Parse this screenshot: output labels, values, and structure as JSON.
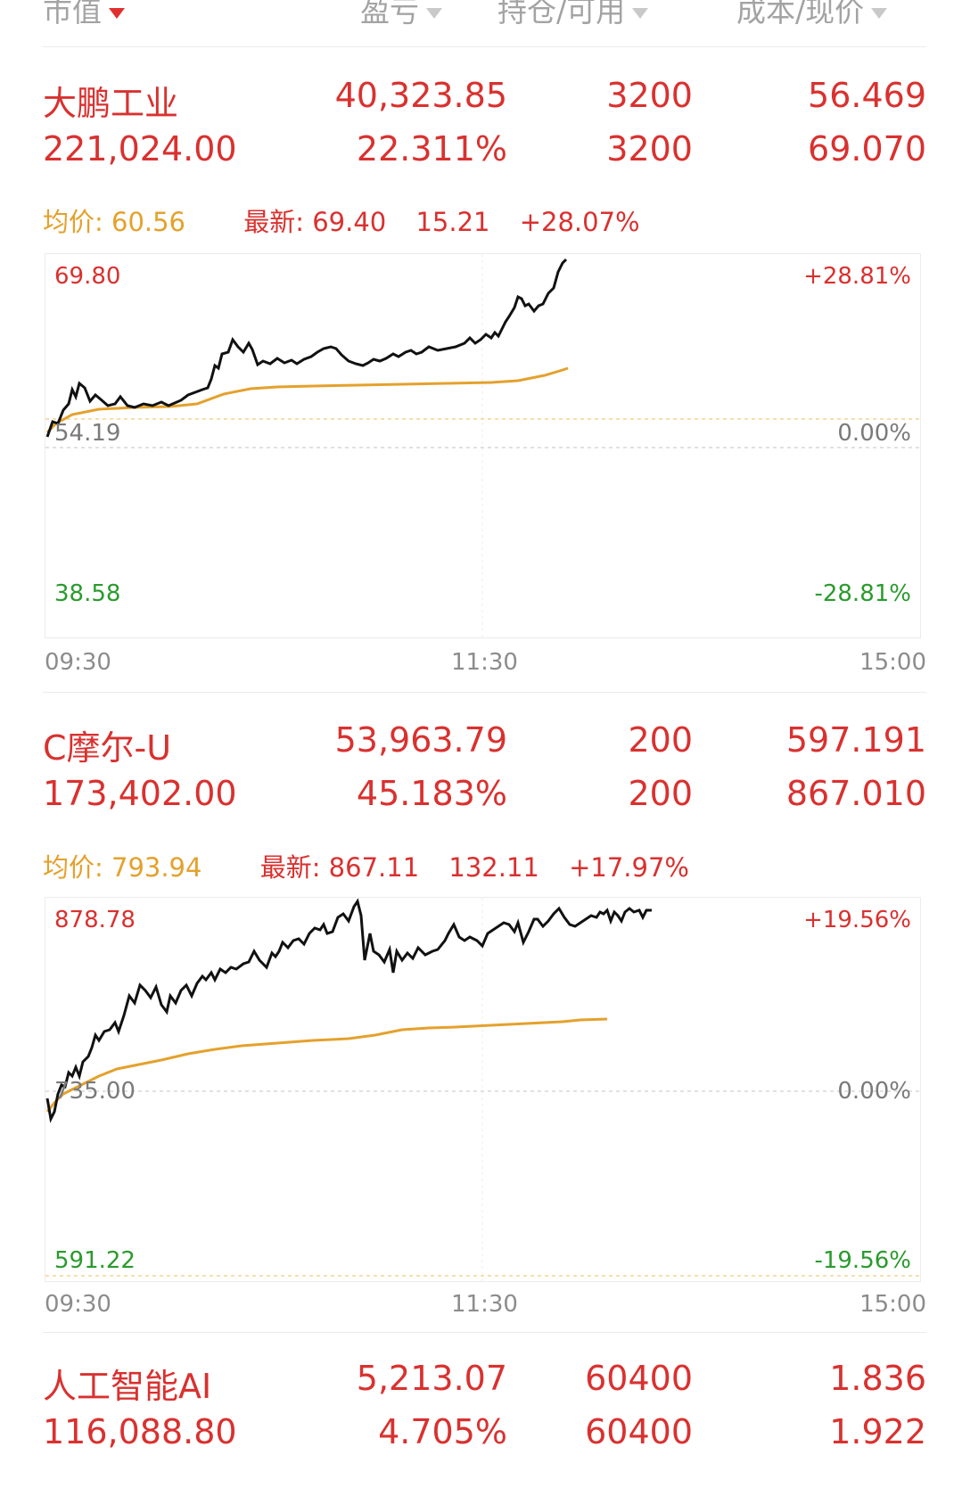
{
  "header": {
    "col1": "市值",
    "col2": "盈亏",
    "col3": "持仓/可用",
    "col4": "成本/现价"
  },
  "colors": {
    "red": "#d9312f",
    "avg": "#e4a12c",
    "green": "#2a9b2d",
    "line": "#111111"
  },
  "stocks": [
    {
      "name": "大鹏工业",
      "market_value": "221,024.00",
      "profit": "40,323.85",
      "profit_pct": "22.311%",
      "position": "3200",
      "available": "3200",
      "cost": "56.469",
      "price": "69.070",
      "avg_label": "均价: 60.56",
      "latest_label": "最新: 69.40",
      "change": "15.21",
      "change_pct": "+28.07%",
      "chart": {
        "top_price": "69.80",
        "mid_price": "54.19",
        "bottom_price": "38.58",
        "top_pct": "+28.81%",
        "mid_pct": "0.00%",
        "bottom_pct": "-28.81%",
        "time_start": "09:30",
        "time_mid": "11:30",
        "time_end": "15:00"
      }
    },
    {
      "name": "C摩尔-U",
      "market_value": "173,402.00",
      "profit": "53,963.79",
      "profit_pct": "45.183%",
      "position": "200",
      "available": "200",
      "cost": "597.191",
      "price": "867.010",
      "avg_label": "均价: 793.94",
      "latest_label": "最新: 867.11",
      "change": "132.11",
      "change_pct": "+17.97%",
      "chart": {
        "top_price": "878.78",
        "mid_price": "735.00",
        "bottom_price": "591.22",
        "top_pct": "+19.56%",
        "mid_pct": "0.00%",
        "bottom_pct": "-19.56%",
        "time_start": "09:30",
        "time_mid": "11:30",
        "time_end": "15:00"
      }
    },
    {
      "name": "人工智能AI",
      "market_value": "116,088.80",
      "profit": "5,213.07",
      "profit_pct": "4.705%",
      "position": "60400",
      "available": "60400",
      "cost": "1.836",
      "price": "1.922"
    }
  ]
}
